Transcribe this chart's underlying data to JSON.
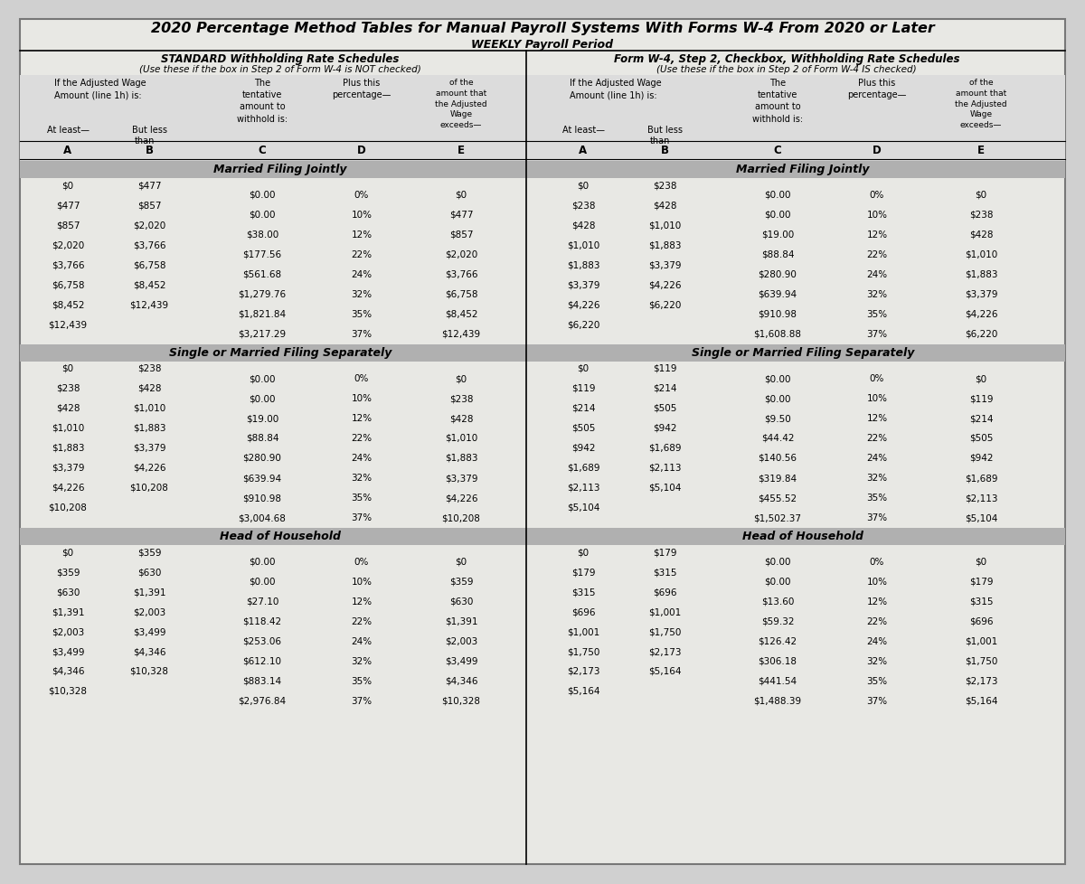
{
  "title": "2020 Percentage Method Tables for Manual Payroll Systems With Forms W-4 From 2020 or Later",
  "subtitle": "WEEKLY Payroll Period",
  "left_header1": "STANDARD Withholding Rate Schedules",
  "left_header2": "(Use these if the box in Step 2 of Form W-4 is NOT checked)",
  "right_header1": "Form W-4, Step 2, Checkbox, Withholding Rate Schedules",
  "right_header2": "(Use these if the box in Step 2 of Form W-4 IS checked)",
  "bg_color": "#d0d0d0",
  "page_color": "#e8e8e4",
  "section_bar_color": "#b0b0b0",
  "sections": [
    {
      "name": "Married Filing Jointly",
      "left": [
        [
          "$0",
          "$477",
          "$0.00",
          "0%",
          "$0"
        ],
        [
          "$477",
          "$857",
          "$0.00",
          "10%",
          "$477"
        ],
        [
          "$857",
          "$2,020",
          "$38.00",
          "12%",
          "$857"
        ],
        [
          "$2,020",
          "$3,766",
          "$177.56",
          "22%",
          "$2,020"
        ],
        [
          "$3,766",
          "$6,758",
          "$561.68",
          "24%",
          "$3,766"
        ],
        [
          "$6,758",
          "$8,452",
          "$1,279.76",
          "32%",
          "$6,758"
        ],
        [
          "$8,452",
          "$12,439",
          "$1,821.84",
          "35%",
          "$8,452"
        ],
        [
          "$12,439",
          "",
          "$3,217.29",
          "37%",
          "$12,439"
        ]
      ],
      "right": [
        [
          "$0",
          "$238",
          "$0.00",
          "0%",
          "$0"
        ],
        [
          "$238",
          "$428",
          "$0.00",
          "10%",
          "$238"
        ],
        [
          "$428",
          "$1,010",
          "$19.00",
          "12%",
          "$428"
        ],
        [
          "$1,010",
          "$1,883",
          "$88.84",
          "22%",
          "$1,010"
        ],
        [
          "$1,883",
          "$3,379",
          "$280.90",
          "24%",
          "$1,883"
        ],
        [
          "$3,379",
          "$4,226",
          "$639.94",
          "32%",
          "$3,379"
        ],
        [
          "$4,226",
          "$6,220",
          "$910.98",
          "35%",
          "$4,226"
        ],
        [
          "$6,220",
          "",
          "$1,608.88",
          "37%",
          "$6,220"
        ]
      ]
    },
    {
      "name": "Single or Married Filing Separately",
      "left": [
        [
          "$0",
          "$238",
          "$0.00",
          "0%",
          "$0"
        ],
        [
          "$238",
          "$428",
          "$0.00",
          "10%",
          "$238"
        ],
        [
          "$428",
          "$1,010",
          "$19.00",
          "12%",
          "$428"
        ],
        [
          "$1,010",
          "$1,883",
          "$88.84",
          "22%",
          "$1,010"
        ],
        [
          "$1,883",
          "$3,379",
          "$280.90",
          "24%",
          "$1,883"
        ],
        [
          "$3,379",
          "$4,226",
          "$639.94",
          "32%",
          "$3,379"
        ],
        [
          "$4,226",
          "$10,208",
          "$910.98",
          "35%",
          "$4,226"
        ],
        [
          "$10,208",
          "",
          "$3,004.68",
          "37%",
          "$10,208"
        ]
      ],
      "right": [
        [
          "$0",
          "$119",
          "$0.00",
          "0%",
          "$0"
        ],
        [
          "$119",
          "$214",
          "$0.00",
          "10%",
          "$119"
        ],
        [
          "$214",
          "$505",
          "$9.50",
          "12%",
          "$214"
        ],
        [
          "$505",
          "$942",
          "$44.42",
          "22%",
          "$505"
        ],
        [
          "$942",
          "$1,689",
          "$140.56",
          "24%",
          "$942"
        ],
        [
          "$1,689",
          "$2,113",
          "$319.84",
          "32%",
          "$1,689"
        ],
        [
          "$2,113",
          "$5,104",
          "$455.52",
          "35%",
          "$2,113"
        ],
        [
          "$5,104",
          "",
          "$1,502.37",
          "37%",
          "$5,104"
        ]
      ]
    },
    {
      "name": "Head of Household",
      "left": [
        [
          "$0",
          "$359",
          "$0.00",
          "0%",
          "$0"
        ],
        [
          "$359",
          "$630",
          "$0.00",
          "10%",
          "$359"
        ],
        [
          "$630",
          "$1,391",
          "$27.10",
          "12%",
          "$630"
        ],
        [
          "$1,391",
          "$2,003",
          "$118.42",
          "22%",
          "$1,391"
        ],
        [
          "$2,003",
          "$3,499",
          "$253.06",
          "24%",
          "$2,003"
        ],
        [
          "$3,499",
          "$4,346",
          "$612.10",
          "32%",
          "$3,499"
        ],
        [
          "$4,346",
          "$10,328",
          "$883.14",
          "35%",
          "$4,346"
        ],
        [
          "$10,328",
          "",
          "$2,976.84",
          "37%",
          "$10,328"
        ]
      ],
      "right": [
        [
          "$0",
          "$179",
          "$0.00",
          "0%",
          "$0"
        ],
        [
          "$179",
          "$315",
          "$0.00",
          "10%",
          "$179"
        ],
        [
          "$315",
          "$696",
          "$13.60",
          "12%",
          "$315"
        ],
        [
          "$696",
          "$1,001",
          "$59.32",
          "22%",
          "$696"
        ],
        [
          "$1,001",
          "$1,750",
          "$126.42",
          "24%",
          "$1,001"
        ],
        [
          "$1,750",
          "$2,173",
          "$306.18",
          "32%",
          "$1,750"
        ],
        [
          "$2,173",
          "$5,164",
          "$441.54",
          "35%",
          "$2,173"
        ],
        [
          "$5,164",
          "",
          "$1,488.39",
          "37%",
          "$5,164"
        ]
      ]
    }
  ]
}
